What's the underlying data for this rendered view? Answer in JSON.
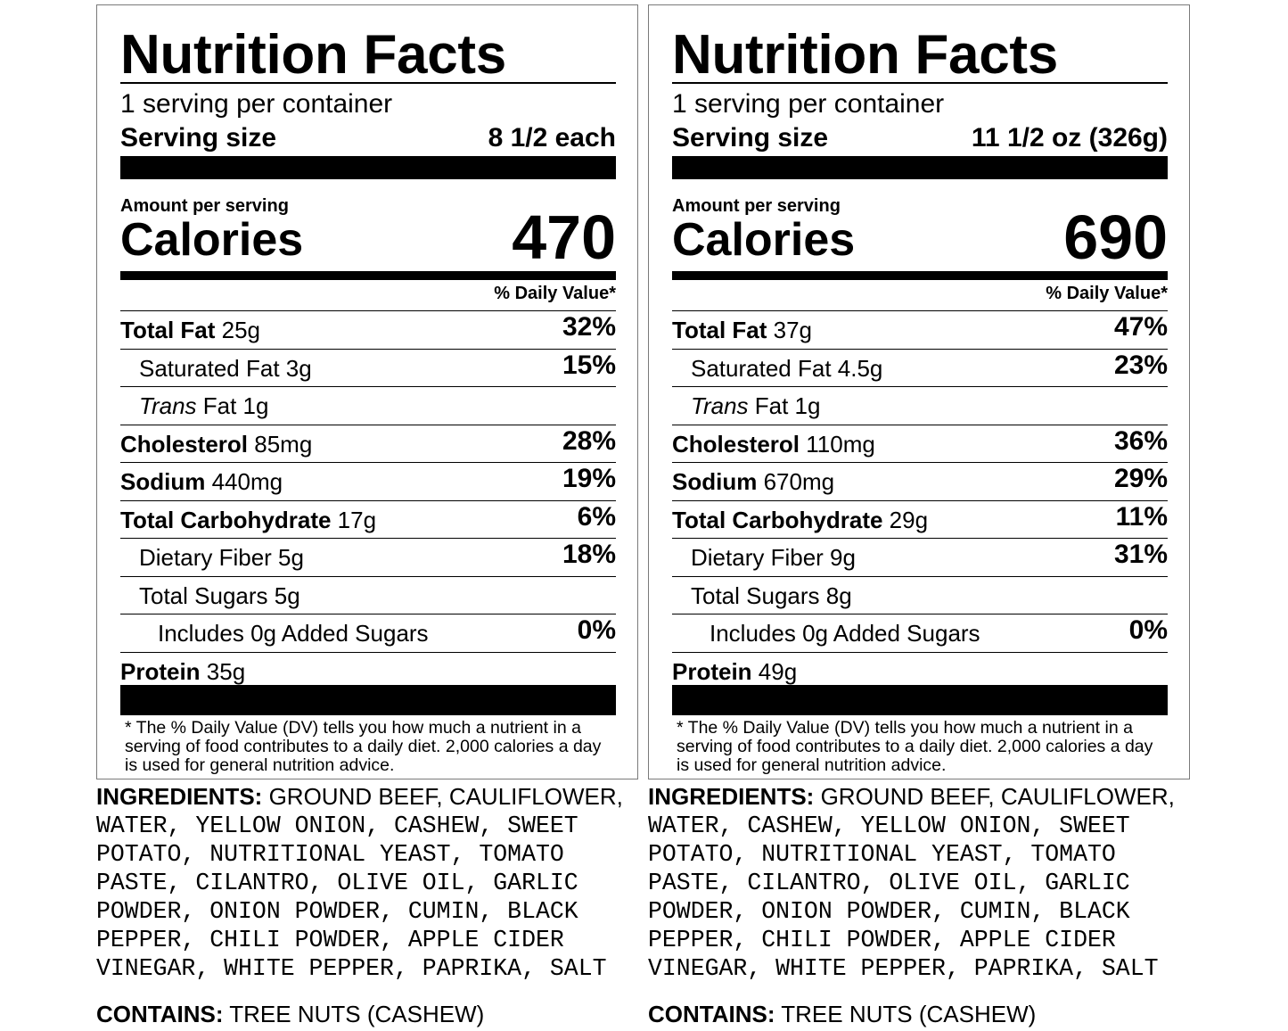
{
  "labels": [
    {
      "title": "Nutrition Facts",
      "servings_per_container": "1 serving per container",
      "serving_size_label": "Serving size",
      "serving_size_value": "8 1/2 each",
      "amount_per_serving": "Amount per serving",
      "calories_label": "Calories",
      "calories_value": "470",
      "daily_value_header": "% Daily Value*",
      "nutrients": [
        {
          "bold": "Total Fat",
          "amount": " 25g",
          "dv": "32%",
          "indent": 0,
          "italic": ""
        },
        {
          "bold": "",
          "amount": "Saturated Fat 3g",
          "dv": "15%",
          "indent": 1,
          "italic": ""
        },
        {
          "bold": "",
          "amount": " Fat 1g",
          "dv": "",
          "indent": 1,
          "italic": "Trans"
        },
        {
          "bold": "Cholesterol",
          "amount": " 85mg",
          "dv": "28%",
          "indent": 0,
          "italic": ""
        },
        {
          "bold": "Sodium",
          "amount": " 440mg",
          "dv": "19%",
          "indent": 0,
          "italic": ""
        },
        {
          "bold": "Total Carbohydrate",
          "amount": " 17g",
          "dv": "6%",
          "indent": 0,
          "italic": ""
        },
        {
          "bold": "",
          "amount": "Dietary Fiber 5g",
          "dv": "18%",
          "indent": 1,
          "italic": ""
        },
        {
          "bold": "",
          "amount": "Total Sugars 5g",
          "dv": "",
          "indent": 1,
          "italic": ""
        },
        {
          "bold": "",
          "amount": "Includes 0g Added Sugars",
          "dv": "0%",
          "indent": 2,
          "italic": ""
        },
        {
          "bold": "Protein",
          "amount": " 35g",
          "dv": "",
          "indent": 0,
          "italic": ""
        }
      ],
      "footnote": "* The % Daily Value (DV) tells you how much a nutrient in a serving of food contributes to a daily diet. 2,000 calories a day is used for general nutrition advice.",
      "ingredients_label": "INGREDIENTS:",
      "ingredients_first": " GROUND BEEF, CAULIFLOWER,",
      "ingredients_rest": "WATER, YELLOW ONION, CASHEW, SWEET\nPOTATO, NUTRITIONAL YEAST, TOMATO\nPASTE, CILANTRO, OLIVE OIL, GARLIC\nPOWDER, ONION POWDER, CUMIN, BLACK\nPEPPER, CHILI POWDER, APPLE CIDER\nVINEGAR, WHITE PEPPER, PAPRIKA, SALT",
      "contains_label": "CONTAINS:",
      "contains_value": " TREE NUTS (CASHEW)"
    },
    {
      "title": "Nutrition Facts",
      "servings_per_container": "1 serving per container",
      "serving_size_label": "Serving size",
      "serving_size_value": "11 1/2 oz (326g)",
      "amount_per_serving": "Amount per serving",
      "calories_label": "Calories",
      "calories_value": "690",
      "daily_value_header": "% Daily Value*",
      "nutrients": [
        {
          "bold": "Total Fat",
          "amount": " 37g",
          "dv": "47%",
          "indent": 0,
          "italic": ""
        },
        {
          "bold": "",
          "amount": "Saturated Fat 4.5g",
          "dv": "23%",
          "indent": 1,
          "italic": ""
        },
        {
          "bold": "",
          "amount": " Fat 1g",
          "dv": "",
          "indent": 1,
          "italic": "Trans"
        },
        {
          "bold": "Cholesterol",
          "amount": " 110mg",
          "dv": "36%",
          "indent": 0,
          "italic": ""
        },
        {
          "bold": "Sodium",
          "amount": " 670mg",
          "dv": "29%",
          "indent": 0,
          "italic": ""
        },
        {
          "bold": "Total Carbohydrate",
          "amount": " 29g",
          "dv": "11%",
          "indent": 0,
          "italic": ""
        },
        {
          "bold": "",
          "amount": "Dietary Fiber 9g",
          "dv": "31%",
          "indent": 1,
          "italic": ""
        },
        {
          "bold": "",
          "amount": "Total Sugars 8g",
          "dv": "",
          "indent": 1,
          "italic": ""
        },
        {
          "bold": "",
          "amount": "Includes 0g Added Sugars",
          "dv": "0%",
          "indent": 2,
          "italic": ""
        },
        {
          "bold": "Protein",
          "amount": " 49g",
          "dv": "",
          "indent": 0,
          "italic": ""
        }
      ],
      "footnote": "* The % Daily Value (DV) tells you how much a nutrient in a serving of food contributes to a daily diet. 2,000 calories a day is used for general nutrition advice.",
      "ingredients_label": "INGREDIENTS:",
      "ingredients_first": " GROUND BEEF, CAULIFLOWER,",
      "ingredients_rest": "WATER, CASHEW, YELLOW ONION, SWEET\nPOTATO, NUTRITIONAL YEAST, TOMATO\nPASTE, CILANTRO, OLIVE OIL, GARLIC\nPOWDER, ONION POWDER, CUMIN, BLACK\nPEPPER, CHILI POWDER, APPLE CIDER\nVINEGAR, WHITE PEPPER, PAPRIKA, SALT",
      "contains_label": "CONTAINS:",
      "contains_value": " TREE NUTS (CASHEW)"
    }
  ]
}
